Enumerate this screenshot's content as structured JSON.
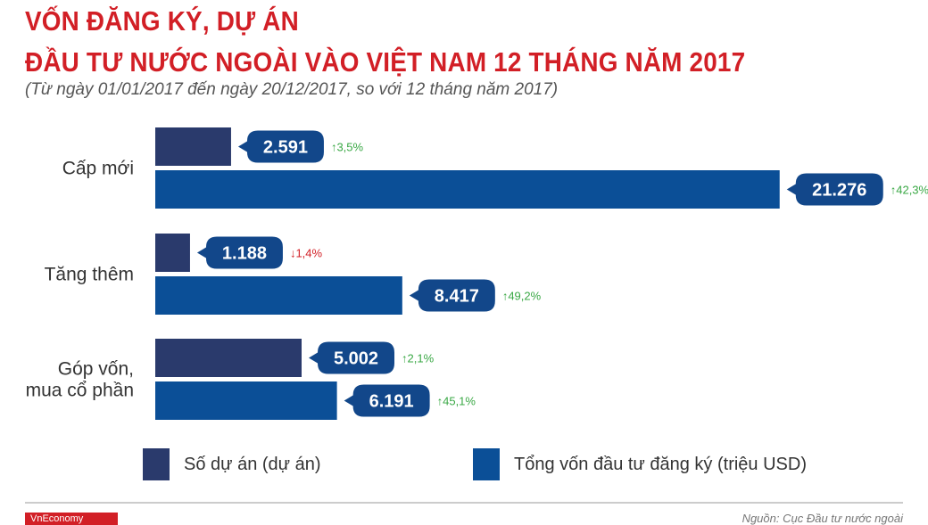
{
  "header": {
    "title_line1": "VỐN ĐĂNG KÝ, DỰ ÁN",
    "title_line2": "ĐẦU TƯ NƯỚC NGOÀI VÀO VIỆT NAM 12 THÁNG NĂM 2017",
    "subtitle": "(Từ ngày 01/01/2017 đến ngày 20/12/2017, so với 12 tháng năm 2017)"
  },
  "colors": {
    "project_bar": "#2a3a6c",
    "capital_bar": "#0b4f97",
    "label_bubble": "#12478a",
    "up": "#3aa845",
    "down": "#d21f26",
    "title": "#d21f26"
  },
  "chart_data": {
    "type": "bar",
    "orientation": "horizontal",
    "categories": [
      "Cấp mới",
      "Tăng thêm",
      "Góp vốn,\nmua cổ phần"
    ],
    "series": [
      {
        "name": "Số dự án (dự án)",
        "values": [
          2591,
          1188,
          5002
        ],
        "value_labels": [
          "2.591",
          "1.188",
          "5.002"
        ],
        "changes": [
          "3,5%",
          "1,4%",
          "2,1%"
        ],
        "change_direction": [
          "up",
          "down",
          "up"
        ]
      },
      {
        "name": "Tổng vốn đầu tư đăng ký (triệu USD)",
        "values": [
          21276,
          8417,
          6191
        ],
        "value_labels": [
          "21.276",
          "8.417",
          "6.191"
        ],
        "changes": [
          "42,3%",
          "49,2%",
          "45,1%"
        ],
        "change_direction": [
          "up",
          "up",
          "up"
        ]
      }
    ],
    "xlim": [
      0,
      22500
    ],
    "grid": false,
    "legend": "bottom"
  },
  "legend": {
    "item1": "Số dự án (dự án)",
    "item2": "Tổng vốn đầu tư đăng ký (triệu USD)"
  },
  "footer": {
    "logo": "VnEconomy",
    "source": "Nguồn: Cục Đầu tư nước ngoài"
  }
}
